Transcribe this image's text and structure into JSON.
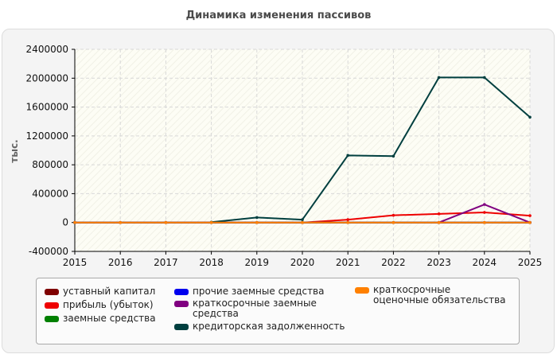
{
  "title": "Динамика изменения пассивов",
  "chart_data": {
    "type": "line",
    "title": "Динамика изменения пассивов",
    "ylabel": "тыс.",
    "xlabel": "",
    "x": [
      2015,
      2016,
      2017,
      2018,
      2019,
      2020,
      2021,
      2022,
      2023,
      2024,
      2025
    ],
    "ylim": [
      -400000,
      2400000
    ],
    "yticks": [
      -400000,
      0,
      400000,
      800000,
      1200000,
      1600000,
      2000000,
      2400000
    ],
    "ytick_labels": [
      "-400000",
      "0",
      "400000",
      "800000",
      "1200000",
      "1600000",
      "2000000",
      "2400000"
    ],
    "xtick_labels": [
      "2015",
      "2016",
      "2017",
      "2018",
      "2019",
      "2020",
      "2021",
      "2022",
      "2023",
      "2024",
      "2025"
    ],
    "grid": true,
    "legend_position": "bottom",
    "series": [
      {
        "name": "уставный капитал",
        "color": "#7f0000",
        "values": [
          10,
          10,
          10,
          10,
          10,
          10,
          10,
          10,
          10,
          10,
          10
        ]
      },
      {
        "name": "прибыль (убыток)",
        "color": "#ee0000",
        "values": [
          0,
          0,
          0,
          2000,
          1000,
          -1000,
          40000,
          100000,
          120000,
          140000,
          95000
        ]
      },
      {
        "name": "заемные средства",
        "color": "#008000",
        "values": [
          0,
          0,
          0,
          0,
          0,
          0,
          0,
          0,
          0,
          0,
          0
        ]
      },
      {
        "name": "прочие заемные средства",
        "color": "#0000ee",
        "values": [
          0,
          0,
          0,
          0,
          0,
          0,
          0,
          0,
          0,
          0,
          0
        ]
      },
      {
        "name": "краткосрочные заемные средства",
        "color": "#800080",
        "values": [
          null,
          null,
          null,
          null,
          null,
          null,
          null,
          null,
          0,
          250000,
          0
        ]
      },
      {
        "name": "кредиторская задолженность",
        "color": "#003f3f",
        "values": [
          null,
          null,
          null,
          5000,
          70000,
          40000,
          930000,
          920000,
          2010000,
          2010000,
          1460000
        ]
      },
      {
        "name": "краткосрочные оценочные обязательства",
        "color": "#ff8000",
        "values": [
          0,
          0,
          0,
          0,
          0,
          0,
          0,
          0,
          0,
          0,
          0
        ]
      }
    ]
  }
}
